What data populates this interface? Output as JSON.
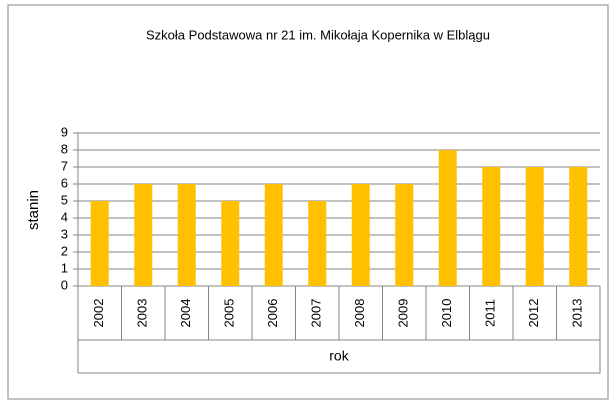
{
  "chart_data": {
    "type": "bar",
    "title": "Szkoła Podstawowa nr 21 im. Mikołaja Kopernika w Elblągu",
    "x_label": "rok",
    "y_label": "stanin",
    "categories": [
      "2002",
      "2003",
      "2004",
      "2005",
      "2006",
      "2007",
      "2008",
      "2009",
      "2010",
      "2011",
      "2012",
      "2013"
    ],
    "values": [
      5,
      6,
      6,
      5,
      6,
      5,
      6,
      6,
      8,
      7,
      7,
      7
    ],
    "color": "#ffc000",
    "ylim": [
      0,
      9
    ],
    "yticks": [
      0,
      1,
      2,
      3,
      4,
      5,
      6,
      7,
      8,
      9
    ],
    "grid": true
  }
}
